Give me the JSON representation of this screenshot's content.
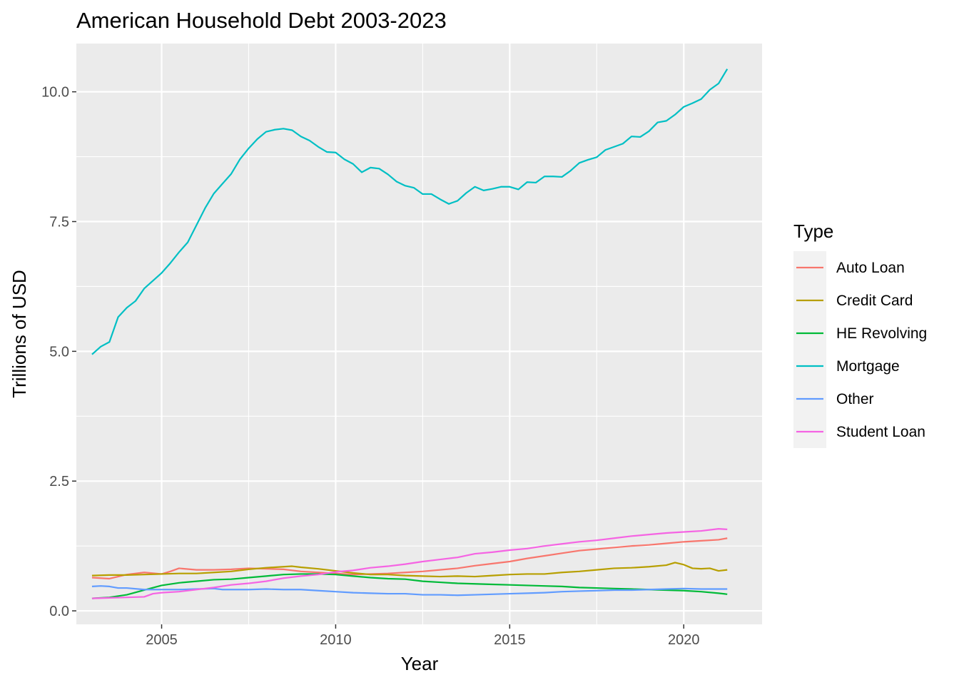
{
  "chart_data": {
    "type": "line",
    "title": "American Household Debt 2003-2023",
    "xlabel": "Year",
    "ylabel": "Trillions of USD",
    "xlim": [
      2002.55,
      2022.25
    ],
    "ylim": [
      -0.26,
      10.93
    ],
    "x_ticks": [
      2005,
      2010,
      2015,
      2020
    ],
    "x_tick_labels": [
      "2005",
      "2010",
      "2015",
      "2020"
    ],
    "y_ticks": [
      0,
      2.5,
      5,
      7.5,
      10
    ],
    "y_tick_labels": [
      "0.0",
      "2.5",
      "5.0",
      "7.5",
      "10.0"
    ],
    "grid": true,
    "legend": {
      "title": "Type",
      "position": "right"
    },
    "series": [
      {
        "name": "Auto Loan",
        "color": "#F8766D",
        "points": [
          [
            2003.0,
            0.64
          ],
          [
            2003.5,
            0.62
          ],
          [
            2004.0,
            0.7
          ],
          [
            2004.5,
            0.74
          ],
          [
            2005.0,
            0.71
          ],
          [
            2005.25,
            0.76
          ],
          [
            2005.5,
            0.82
          ],
          [
            2006.0,
            0.79
          ],
          [
            2006.5,
            0.79
          ],
          [
            2007.0,
            0.8
          ],
          [
            2007.5,
            0.82
          ],
          [
            2008.0,
            0.81
          ],
          [
            2008.5,
            0.8
          ],
          [
            2009.0,
            0.76
          ],
          [
            2009.5,
            0.74
          ],
          [
            2010.0,
            0.72
          ],
          [
            2010.5,
            0.7
          ],
          [
            2011.0,
            0.71
          ],
          [
            2011.5,
            0.72
          ],
          [
            2012.0,
            0.74
          ],
          [
            2012.5,
            0.76
          ],
          [
            2013.0,
            0.79
          ],
          [
            2013.5,
            0.82
          ],
          [
            2014.0,
            0.87
          ],
          [
            2014.5,
            0.91
          ],
          [
            2015.0,
            0.95
          ],
          [
            2015.5,
            1.01
          ],
          [
            2016.0,
            1.06
          ],
          [
            2016.5,
            1.11
          ],
          [
            2017.0,
            1.16
          ],
          [
            2017.5,
            1.19
          ],
          [
            2018.0,
            1.22
          ],
          [
            2018.5,
            1.25
          ],
          [
            2019.0,
            1.27
          ],
          [
            2019.5,
            1.3
          ],
          [
            2020.0,
            1.33
          ],
          [
            2020.5,
            1.35
          ],
          [
            2021.0,
            1.37
          ],
          [
            2021.25,
            1.4
          ]
        ]
      },
      {
        "name": "Credit Card",
        "color": "#B79F00",
        "points": [
          [
            2003.0,
            0.68
          ],
          [
            2003.5,
            0.69
          ],
          [
            2004.0,
            0.69
          ],
          [
            2004.5,
            0.7
          ],
          [
            2005.0,
            0.71
          ],
          [
            2005.5,
            0.72
          ],
          [
            2006.0,
            0.72
          ],
          [
            2006.5,
            0.74
          ],
          [
            2007.0,
            0.76
          ],
          [
            2007.5,
            0.8
          ],
          [
            2008.0,
            0.83
          ],
          [
            2008.5,
            0.85
          ],
          [
            2008.75,
            0.86
          ],
          [
            2009.0,
            0.84
          ],
          [
            2009.5,
            0.81
          ],
          [
            2010.0,
            0.77
          ],
          [
            2010.5,
            0.73
          ],
          [
            2011.0,
            0.7
          ],
          [
            2011.5,
            0.7
          ],
          [
            2012.0,
            0.68
          ],
          [
            2012.5,
            0.67
          ],
          [
            2013.0,
            0.66
          ],
          [
            2013.5,
            0.67
          ],
          [
            2014.0,
            0.66
          ],
          [
            2014.5,
            0.68
          ],
          [
            2015.0,
            0.7
          ],
          [
            2015.5,
            0.71
          ],
          [
            2016.0,
            0.71
          ],
          [
            2016.5,
            0.74
          ],
          [
            2017.0,
            0.76
          ],
          [
            2017.5,
            0.79
          ],
          [
            2018.0,
            0.82
          ],
          [
            2018.5,
            0.83
          ],
          [
            2019.0,
            0.85
          ],
          [
            2019.5,
            0.88
          ],
          [
            2019.75,
            0.93
          ],
          [
            2020.0,
            0.89
          ],
          [
            2020.25,
            0.82
          ],
          [
            2020.5,
            0.81
          ],
          [
            2020.75,
            0.82
          ],
          [
            2021.0,
            0.77
          ],
          [
            2021.25,
            0.79
          ]
        ]
      },
      {
        "name": "HE Revolving",
        "color": "#00BA38",
        "points": [
          [
            2003.0,
            0.24
          ],
          [
            2003.5,
            0.26
          ],
          [
            2004.0,
            0.31
          ],
          [
            2004.5,
            0.4
          ],
          [
            2005.0,
            0.49
          ],
          [
            2005.5,
            0.54
          ],
          [
            2006.0,
            0.57
          ],
          [
            2006.5,
            0.6
          ],
          [
            2007.0,
            0.61
          ],
          [
            2007.5,
            0.64
          ],
          [
            2008.0,
            0.67
          ],
          [
            2008.5,
            0.7
          ],
          [
            2009.0,
            0.71
          ],
          [
            2009.5,
            0.71
          ],
          [
            2010.0,
            0.7
          ],
          [
            2010.5,
            0.67
          ],
          [
            2011.0,
            0.64
          ],
          [
            2011.5,
            0.62
          ],
          [
            2012.0,
            0.61
          ],
          [
            2012.5,
            0.57
          ],
          [
            2013.0,
            0.55
          ],
          [
            2013.5,
            0.53
          ],
          [
            2014.0,
            0.52
          ],
          [
            2014.5,
            0.51
          ],
          [
            2015.0,
            0.5
          ],
          [
            2015.5,
            0.49
          ],
          [
            2016.0,
            0.48
          ],
          [
            2016.5,
            0.47
          ],
          [
            2017.0,
            0.45
          ],
          [
            2017.5,
            0.44
          ],
          [
            2018.0,
            0.43
          ],
          [
            2018.5,
            0.42
          ],
          [
            2019.0,
            0.41
          ],
          [
            2019.5,
            0.4
          ],
          [
            2020.0,
            0.39
          ],
          [
            2020.5,
            0.37
          ],
          [
            2021.0,
            0.34
          ],
          [
            2021.25,
            0.32
          ]
        ]
      },
      {
        "name": "Mortgage",
        "color": "#00BFC4",
        "points": [
          [
            2003.0,
            4.94
          ],
          [
            2003.25,
            5.09
          ],
          [
            2003.5,
            5.18
          ],
          [
            2003.75,
            5.66
          ],
          [
            2004.0,
            5.84
          ],
          [
            2004.25,
            5.97
          ],
          [
            2004.5,
            6.21
          ],
          [
            2004.75,
            6.36
          ],
          [
            2005.0,
            6.51
          ],
          [
            2005.25,
            6.7
          ],
          [
            2005.5,
            6.91
          ],
          [
            2005.75,
            7.1
          ],
          [
            2006.0,
            7.43
          ],
          [
            2006.25,
            7.76
          ],
          [
            2006.5,
            8.04
          ],
          [
            2006.75,
            8.23
          ],
          [
            2007.0,
            8.42
          ],
          [
            2007.25,
            8.7
          ],
          [
            2007.5,
            8.91
          ],
          [
            2007.75,
            9.09
          ],
          [
            2008.0,
            9.23
          ],
          [
            2008.25,
            9.27
          ],
          [
            2008.5,
            9.29
          ],
          [
            2008.75,
            9.26
          ],
          [
            2009.0,
            9.14
          ],
          [
            2009.25,
            9.06
          ],
          [
            2009.5,
            8.94
          ],
          [
            2009.75,
            8.84
          ],
          [
            2010.0,
            8.83
          ],
          [
            2010.25,
            8.7
          ],
          [
            2010.5,
            8.61
          ],
          [
            2010.75,
            8.45
          ],
          [
            2011.0,
            8.54
          ],
          [
            2011.25,
            8.52
          ],
          [
            2011.5,
            8.41
          ],
          [
            2011.75,
            8.27
          ],
          [
            2012.0,
            8.19
          ],
          [
            2012.25,
            8.15
          ],
          [
            2012.5,
            8.03
          ],
          [
            2012.75,
            8.03
          ],
          [
            2013.0,
            7.93
          ],
          [
            2013.25,
            7.84
          ],
          [
            2013.5,
            7.9
          ],
          [
            2013.75,
            8.05
          ],
          [
            2014.0,
            8.17
          ],
          [
            2014.25,
            8.1
          ],
          [
            2014.5,
            8.13
          ],
          [
            2014.75,
            8.17
          ],
          [
            2015.0,
            8.17
          ],
          [
            2015.25,
            8.12
          ],
          [
            2015.5,
            8.26
          ],
          [
            2015.75,
            8.25
          ],
          [
            2016.0,
            8.37
          ],
          [
            2016.25,
            8.37
          ],
          [
            2016.5,
            8.36
          ],
          [
            2016.75,
            8.48
          ],
          [
            2017.0,
            8.63
          ],
          [
            2017.25,
            8.69
          ],
          [
            2017.5,
            8.74
          ],
          [
            2017.75,
            8.88
          ],
          [
            2018.0,
            8.94
          ],
          [
            2018.25,
            9.0
          ],
          [
            2018.5,
            9.14
          ],
          [
            2018.75,
            9.13
          ],
          [
            2019.0,
            9.24
          ],
          [
            2019.25,
            9.41
          ],
          [
            2019.5,
            9.44
          ],
          [
            2019.75,
            9.56
          ],
          [
            2020.0,
            9.71
          ],
          [
            2020.25,
            9.78
          ],
          [
            2020.5,
            9.86
          ],
          [
            2020.75,
            10.04
          ],
          [
            2021.0,
            10.16
          ],
          [
            2021.25,
            10.44
          ]
        ]
      },
      {
        "name": "Other",
        "color": "#619CFF",
        "points": [
          [
            2003.0,
            0.47
          ],
          [
            2003.25,
            0.48
          ],
          [
            2003.5,
            0.47
          ],
          [
            2003.75,
            0.44
          ],
          [
            2004.0,
            0.44
          ],
          [
            2004.5,
            0.41
          ],
          [
            2005.0,
            0.41
          ],
          [
            2005.5,
            0.41
          ],
          [
            2006.0,
            0.42
          ],
          [
            2006.5,
            0.43
          ],
          [
            2006.75,
            0.41
          ],
          [
            2007.0,
            0.41
          ],
          [
            2007.5,
            0.41
          ],
          [
            2008.0,
            0.42
          ],
          [
            2008.5,
            0.41
          ],
          [
            2009.0,
            0.41
          ],
          [
            2009.5,
            0.39
          ],
          [
            2010.0,
            0.37
          ],
          [
            2010.5,
            0.35
          ],
          [
            2011.0,
            0.34
          ],
          [
            2011.5,
            0.33
          ],
          [
            2012.0,
            0.33
          ],
          [
            2012.5,
            0.31
          ],
          [
            2013.0,
            0.31
          ],
          [
            2013.5,
            0.3
          ],
          [
            2014.0,
            0.31
          ],
          [
            2014.5,
            0.32
          ],
          [
            2015.0,
            0.33
          ],
          [
            2015.5,
            0.34
          ],
          [
            2016.0,
            0.35
          ],
          [
            2016.5,
            0.37
          ],
          [
            2017.0,
            0.38
          ],
          [
            2017.5,
            0.39
          ],
          [
            2018.0,
            0.4
          ],
          [
            2018.5,
            0.4
          ],
          [
            2019.0,
            0.41
          ],
          [
            2019.5,
            0.42
          ],
          [
            2020.0,
            0.43
          ],
          [
            2020.5,
            0.42
          ],
          [
            2021.0,
            0.42
          ],
          [
            2021.25,
            0.42
          ]
        ]
      },
      {
        "name": "Student Loan",
        "color": "#F564E3",
        "points": [
          [
            2003.0,
            0.24
          ],
          [
            2003.5,
            0.25
          ],
          [
            2004.0,
            0.26
          ],
          [
            2004.5,
            0.27
          ],
          [
            2004.75,
            0.33
          ],
          [
            2005.0,
            0.35
          ],
          [
            2005.5,
            0.37
          ],
          [
            2006.0,
            0.41
          ],
          [
            2006.5,
            0.45
          ],
          [
            2007.0,
            0.5
          ],
          [
            2007.5,
            0.53
          ],
          [
            2008.0,
            0.57
          ],
          [
            2008.5,
            0.63
          ],
          [
            2009.0,
            0.67
          ],
          [
            2009.5,
            0.7
          ],
          [
            2010.0,
            0.75
          ],
          [
            2010.5,
            0.78
          ],
          [
            2011.0,
            0.83
          ],
          [
            2011.5,
            0.86
          ],
          [
            2012.0,
            0.9
          ],
          [
            2012.5,
            0.95
          ],
          [
            2013.0,
            0.99
          ],
          [
            2013.5,
            1.03
          ],
          [
            2014.0,
            1.1
          ],
          [
            2014.5,
            1.13
          ],
          [
            2015.0,
            1.17
          ],
          [
            2015.5,
            1.2
          ],
          [
            2016.0,
            1.25
          ],
          [
            2016.5,
            1.29
          ],
          [
            2017.0,
            1.33
          ],
          [
            2017.5,
            1.36
          ],
          [
            2018.0,
            1.4
          ],
          [
            2018.5,
            1.44
          ],
          [
            2019.0,
            1.47
          ],
          [
            2019.5,
            1.5
          ],
          [
            2020.0,
            1.52
          ],
          [
            2020.5,
            1.54
          ],
          [
            2021.0,
            1.58
          ],
          [
            2021.25,
            1.57
          ]
        ]
      }
    ]
  }
}
